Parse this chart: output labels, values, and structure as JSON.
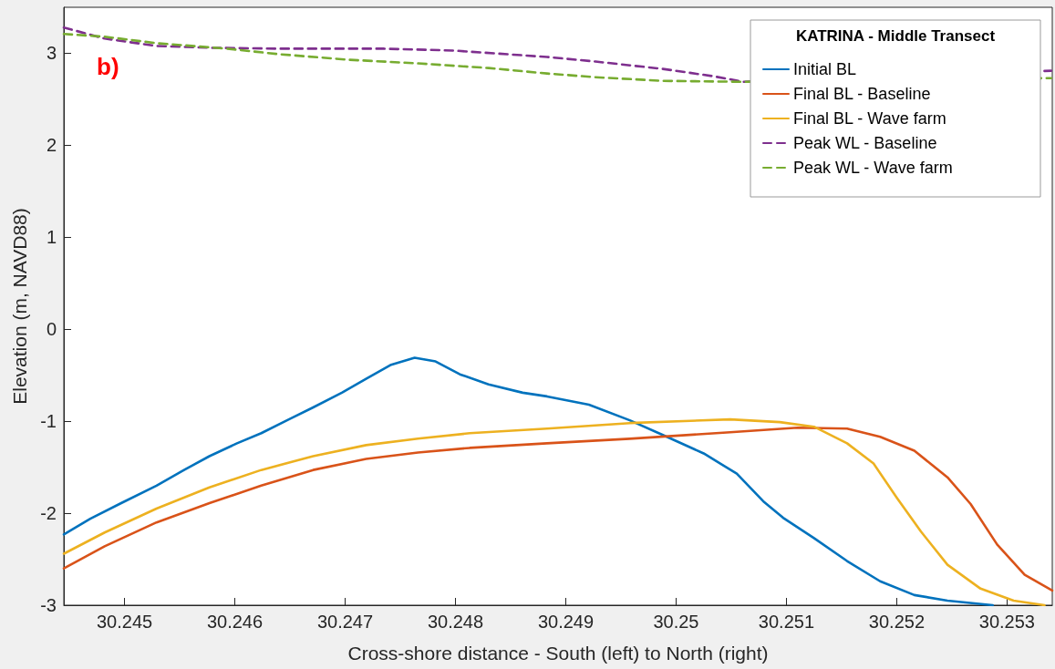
{
  "chart_data": {
    "type": "line",
    "xlabel": "Cross-shore distance - South (left) to North (right)",
    "ylabel": "Elevation (m, NAVD88)",
    "legend_title": "KATRINA - Middle Transect",
    "annotations": [
      "b)"
    ],
    "xlim": [
      30.24445,
      30.25341
    ],
    "xticks": [
      30.245,
      30.246,
      30.247,
      30.248,
      30.249,
      30.25,
      30.251,
      30.252,
      30.253
    ],
    "ylim": [
      -3,
      3.5
    ],
    "yticks": [
      -3,
      -2,
      -1,
      0,
      1,
      2,
      3
    ],
    "grid": false,
    "legend": "top right",
    "marker": "none",
    "series": [
      {
        "name": "Initial BL",
        "color": "#0072bd",
        "line_style": "solid",
        "x": [
          30.24445,
          30.24469,
          30.24497,
          30.24529,
          30.24554,
          30.24577,
          30.24602,
          30.24624,
          30.24649,
          30.24671,
          30.24697,
          30.24719,
          30.24741,
          30.24763,
          30.24782,
          30.24804,
          30.2483,
          30.24861,
          30.24883,
          30.24921,
          30.24958,
          30.24988,
          30.25025,
          30.25055,
          30.25079,
          30.25097,
          30.25125,
          30.25155,
          30.25185,
          30.25216,
          30.25246,
          30.25287
        ],
        "values": [
          -2.23,
          -2.06,
          -1.89,
          -1.7,
          -1.53,
          -1.38,
          -1.24,
          -1.13,
          -0.98,
          -0.85,
          -0.69,
          -0.54,
          -0.39,
          -0.31,
          -0.35,
          -0.49,
          -0.6,
          -0.69,
          -0.73,
          -0.82,
          -0.99,
          -1.15,
          -1.35,
          -1.57,
          -1.87,
          -2.05,
          -2.27,
          -2.52,
          -2.74,
          -2.89,
          -2.95,
          -3.0
        ]
      },
      {
        "name": "Final BL - Baseline",
        "color": "#d95319",
        "line_style": "solid",
        "x": [
          30.24445,
          30.24482,
          30.24529,
          30.24577,
          30.24624,
          30.24671,
          30.24719,
          30.24766,
          30.24813,
          30.24883,
          30.24958,
          30.25049,
          30.2511,
          30.25155,
          30.25185,
          30.25216,
          30.25246,
          30.25267,
          30.25291,
          30.25316,
          30.25341
        ],
        "values": [
          -2.6,
          -2.36,
          -2.1,
          -1.89,
          -1.7,
          -1.53,
          -1.41,
          -1.34,
          -1.29,
          -1.24,
          -1.19,
          -1.12,
          -1.07,
          -1.08,
          -1.17,
          -1.32,
          -1.61,
          -1.9,
          -2.34,
          -2.67,
          -2.84
        ]
      },
      {
        "name": "Final BL - Wave farm",
        "color": "#edb120",
        "line_style": "solid",
        "x": [
          30.24445,
          30.24482,
          30.24529,
          30.24577,
          30.24624,
          30.24671,
          30.24719,
          30.24766,
          30.24813,
          30.24883,
          30.24958,
          30.25049,
          30.25094,
          30.25125,
          30.25155,
          30.25179,
          30.252,
          30.25222,
          30.25246,
          30.25276,
          30.25306,
          30.25334
        ],
        "values": [
          -2.44,
          -2.21,
          -1.95,
          -1.72,
          -1.53,
          -1.38,
          -1.26,
          -1.19,
          -1.13,
          -1.08,
          -1.02,
          -0.98,
          -1.01,
          -1.06,
          -1.24,
          -1.46,
          -1.83,
          -2.2,
          -2.56,
          -2.82,
          -2.95,
          -3.0
        ]
      },
      {
        "name": "Peak WL - Baseline",
        "color": "#7e2f8e",
        "line_style": "dashed",
        "x": [
          30.24445,
          30.24482,
          30.24529,
          30.24577,
          30.2464,
          30.24735,
          30.24798,
          30.24883,
          30.24927,
          30.24988,
          30.25034,
          30.25061,
          30.2534
        ],
        "values": [
          3.28,
          3.16,
          3.08,
          3.06,
          3.05,
          3.05,
          3.03,
          2.96,
          2.91,
          2.83,
          2.75,
          2.69,
          2.81
        ]
      },
      {
        "name": "Peak WL - Wave farm",
        "color": "#77ac30",
        "line_style": "dashed",
        "x": [
          30.24445,
          30.24482,
          30.24529,
          30.24593,
          30.2464,
          30.24703,
          30.24766,
          30.2483,
          30.24883,
          30.24927,
          30.24988,
          30.25061,
          30.2534
        ],
        "values": [
          3.21,
          3.18,
          3.11,
          3.05,
          2.99,
          2.93,
          2.89,
          2.84,
          2.78,
          2.74,
          2.7,
          2.69,
          2.73
        ]
      }
    ]
  }
}
